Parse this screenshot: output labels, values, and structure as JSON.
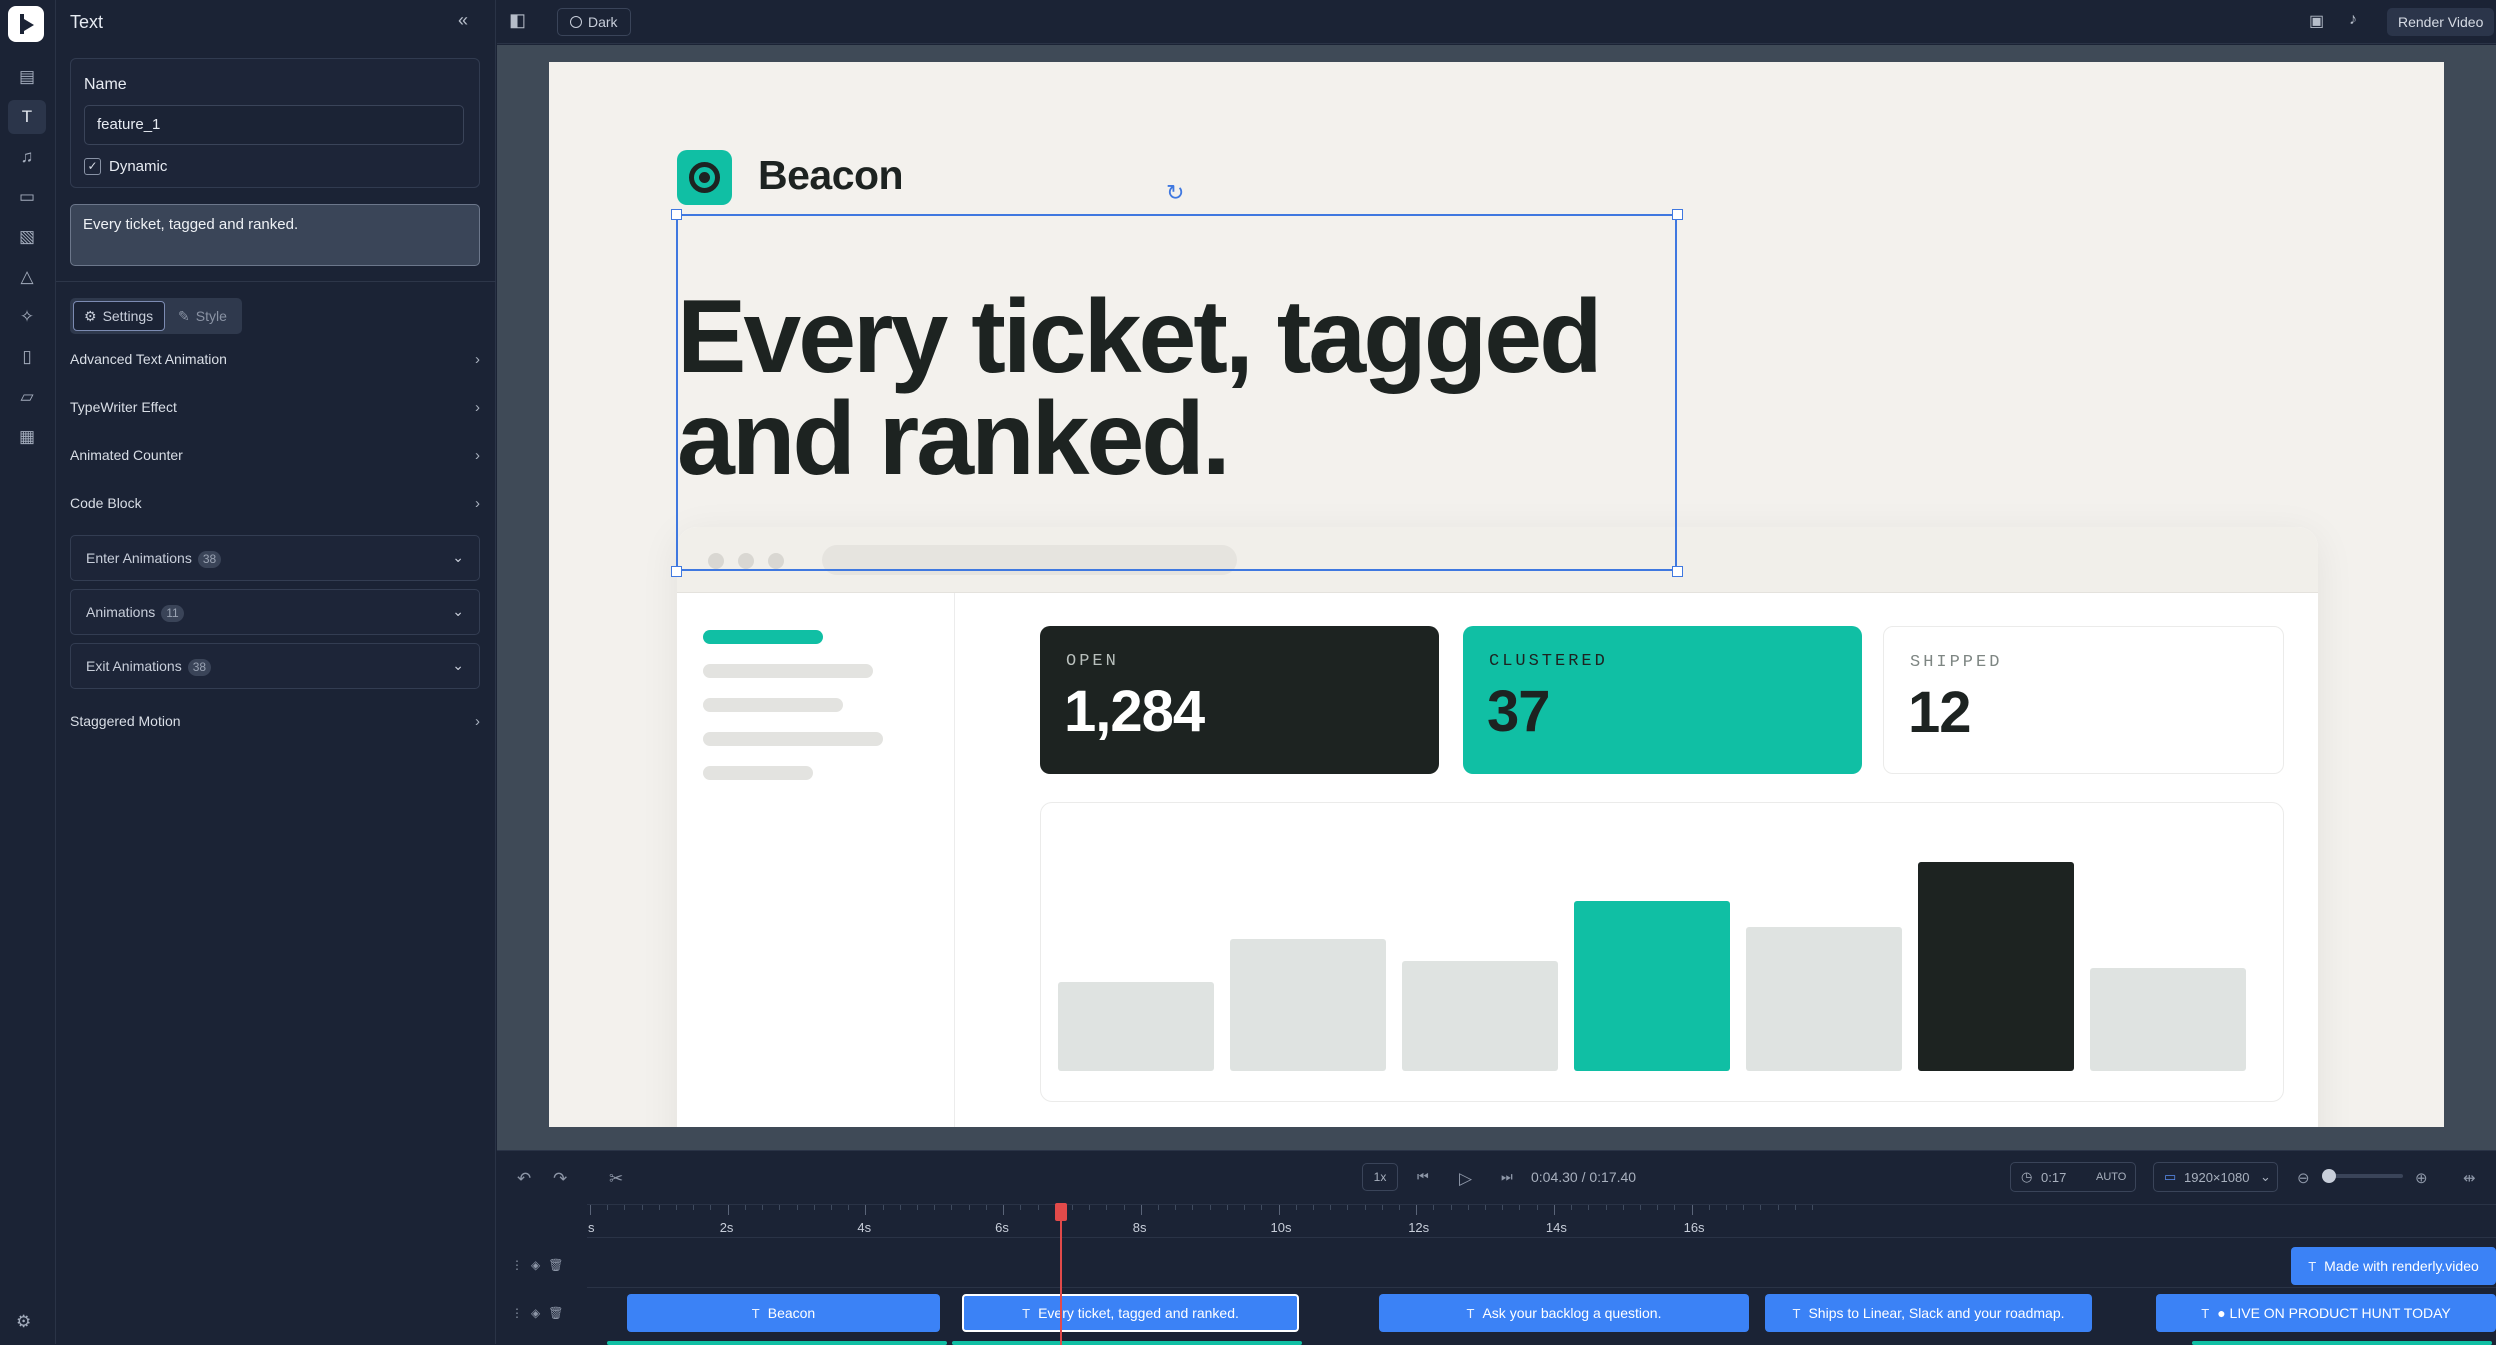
{
  "sidebar": {
    "title": "Text",
    "name_label": "Name",
    "name_value": "feature_1",
    "dynamic_label": "Dynamic",
    "dynamic_checked": true,
    "text_value": "Every ticket, tagged and ranked.",
    "tabs": {
      "settings": "Settings",
      "style": "Style"
    },
    "sections": [
      "Advanced Text Animation",
      "TypeWriter Effect",
      "Animated Counter",
      "Code Block"
    ],
    "animations": [
      {
        "label": "Enter Animations",
        "count": "38"
      },
      {
        "label": "Animations",
        "count": "11"
      },
      {
        "label": "Exit Animations",
        "count": "38"
      }
    ],
    "staggered": "Staggered Motion"
  },
  "topbar": {
    "theme": "Dark",
    "render": "Render Video"
  },
  "canvas": {
    "brand": "Beacon",
    "headline": "Every ticket, tagged and ranked.",
    "stats": [
      {
        "label": "OPEN",
        "value": "1,284"
      },
      {
        "label": "CLUSTERED",
        "value": "37"
      },
      {
        "label": "SHIPPED",
        "value": "12"
      }
    ],
    "bars": [
      0.37,
      0.55,
      0.46,
      0.71,
      0.6,
      0.87,
      0.43
    ],
    "colors": {
      "accent": "#10bfa4",
      "dark": "#1d2321",
      "muted": "#dfe3e1",
      "selection": "#3f78e0"
    }
  },
  "timeline": {
    "speed": "1x",
    "time": "0:04.30 / 0:17.40",
    "duration": "0:17",
    "duration_mode": "AUTO",
    "resolution": "1920×1080",
    "ticks": [
      "s",
      "2s",
      "4s",
      "6s",
      "8s",
      "10s",
      "12s",
      "14s",
      "16s"
    ],
    "track1": [
      {
        "label": "Made with renderly.video"
      }
    ],
    "track2": [
      {
        "label": "Beacon"
      },
      {
        "label": "Every ticket, tagged and ranked."
      },
      {
        "label": "Ask your backlog a question."
      },
      {
        "label": "Ships to Linear, Slack and your roadmap."
      },
      {
        "label": "● LIVE ON PRODUCT HUNT TODAY"
      }
    ]
  }
}
